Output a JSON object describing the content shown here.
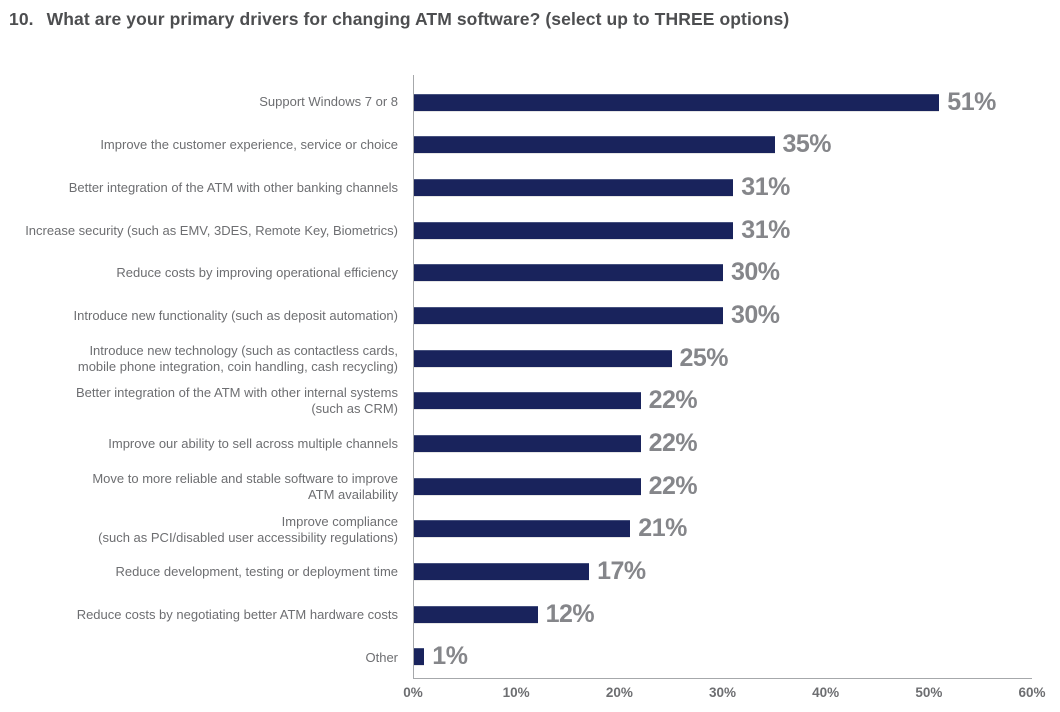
{
  "title": {
    "number": "10.",
    "text": "What are your primary drivers for changing ATM software? (select up to THREE options)"
  },
  "colors": {
    "background": "#ffffff",
    "bar": "#19235c",
    "bar_top_edge": "#46517e",
    "title_text": "#4d4e50",
    "category_label": "#6d6e71",
    "value_label": "#85868a",
    "tick_label": "#6d6e71",
    "axis_line": "#a6a8ab"
  },
  "chart_data": {
    "type": "bar",
    "orientation": "horizontal",
    "title": "10. What are your primary drivers for changing ATM software? (select up to THREE options)",
    "categories": [
      "Support Windows 7 or 8",
      "Improve the customer experience, service or choice",
      "Better integration of the ATM with other banking channels",
      "Increase security (such as EMV, 3DES, Remote Key, Biometrics)",
      "Reduce costs by improving operational efficiency",
      "Introduce new functionality (such as deposit automation)",
      "Introduce new technology (such as contactless cards,\nmobile phone integration, coin handling, cash recycling)",
      "Better integration of the ATM with other internal systems\n(such as CRM)",
      "Improve our ability to sell across multiple channels",
      "Move to more reliable and stable software to improve\nATM availability",
      "Improve compliance\n(such as PCI/disabled user accessibility regulations)",
      "Reduce development, testing or deployment time",
      "Reduce costs by negotiating better ATM hardware costs",
      "Other"
    ],
    "values": [
      51,
      35,
      31,
      31,
      30,
      30,
      25,
      22,
      22,
      22,
      21,
      17,
      12,
      1
    ],
    "value_labels": [
      "51%",
      "35%",
      "31%",
      "31%",
      "30%",
      "30%",
      "25%",
      "22%",
      "22%",
      "22%",
      "21%",
      "17%",
      "12%",
      "1%"
    ],
    "xlabel": "",
    "ylabel": "",
    "xlim": [
      0,
      60
    ],
    "x_ticks": [
      "0%",
      "10%",
      "20%",
      "30%",
      "40%",
      "50%",
      "60%"
    ],
    "grid": false,
    "legend": false
  }
}
